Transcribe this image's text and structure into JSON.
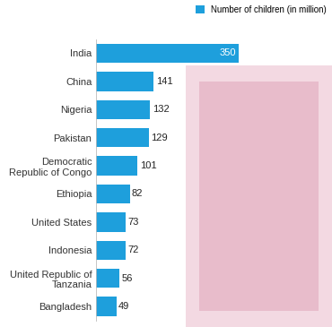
{
  "chart_data": {
    "type": "bar",
    "orientation": "horizontal",
    "categories": [
      "India",
      "China",
      "Nigeria",
      "Pakistan",
      "Democratic Republic of Congo",
      "Ethiopia",
      "United States",
      "Indonesia",
      "United Republic of Tanzania",
      "Bangladesh"
    ],
    "series": [
      {
        "name": "Number of children (in million)",
        "color": "#1e9fdc",
        "values": [
          350,
          141,
          132,
          129,
          101,
          82,
          73,
          72,
          56,
          49
        ]
      }
    ],
    "data_labels": true,
    "tick_labels": "y",
    "legend": "upper right"
  }
}
